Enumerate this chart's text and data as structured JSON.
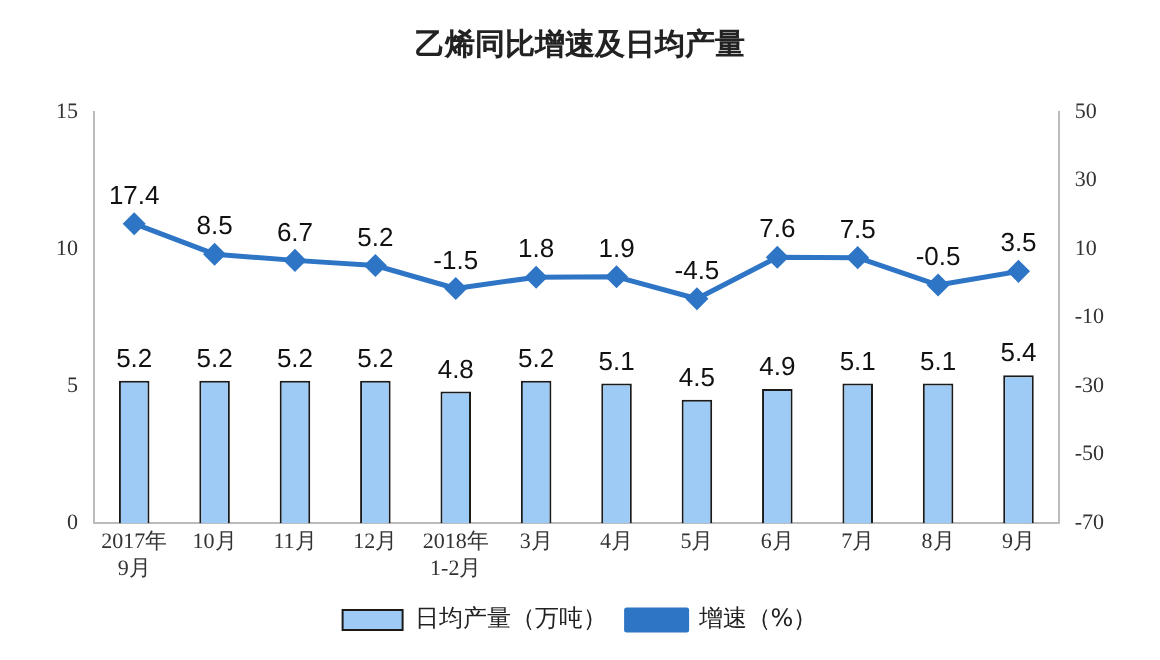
{
  "chart_data": {
    "type": "bar",
    "title": "乙烯同比增速及日均产量",
    "categories": [
      "2017年\n9月",
      "10月",
      "11月",
      "12月",
      "2018年\n1-2月",
      "3月",
      "4月",
      "5月",
      "6月",
      "7月",
      "8月",
      "9月"
    ],
    "series": [
      {
        "name": "日均产量（万吨）",
        "color": "#9dcbf5",
        "values": [
          5.2,
          5.2,
          5.2,
          5.2,
          4.8,
          5.2,
          5.1,
          4.5,
          4.9,
          5.1,
          5.1,
          5.4
        ]
      },
      {
        "name": "增速（%）",
        "type": "line",
        "axis": "y2",
        "color": "#2e75c6",
        "marker": "diamond",
        "values": [
          17.4,
          8.5,
          6.7,
          5.2,
          -1.5,
          1.8,
          1.9,
          -4.5,
          7.6,
          7.5,
          -0.5,
          3.5
        ]
      }
    ],
    "ylim": [
      0,
      15
    ],
    "yticks": [
      0,
      5,
      10,
      15
    ],
    "y2lim": [
      -70,
      50
    ],
    "y2ticks": [
      -70,
      -50,
      -30,
      -10,
      10,
      30,
      50
    ],
    "data_labels": true,
    "grid": false,
    "legend": "bottom"
  }
}
